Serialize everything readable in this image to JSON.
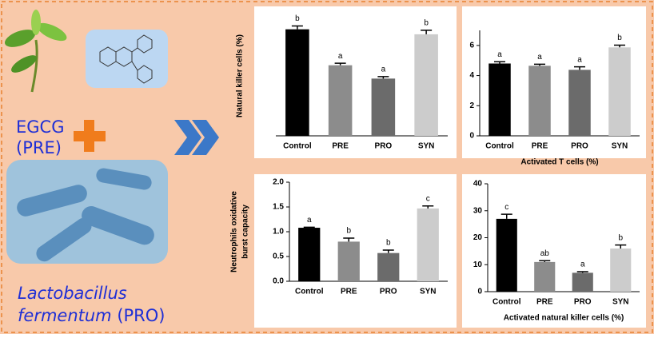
{
  "left_panel": {
    "line1": "EGCG",
    "line2": "(PRE)",
    "genus": "Lactobacillus",
    "species": "fermentum",
    "code": "(PRO)"
  },
  "chart_data": [
    {
      "type": "bar",
      "ylabel": [
        "Natural killer cells (%)"
      ],
      "categories": [
        "Control",
        "PRE",
        "PRO",
        "SYN"
      ],
      "values": [
        3.2,
        2.12,
        1.72,
        3.05
      ],
      "errors": [
        0.1,
        0.06,
        0.06,
        0.12
      ],
      "letters": [
        "b",
        "a",
        "a",
        "b"
      ],
      "colors": [
        "#000000",
        "#8c8c8c",
        "#6b6b6b",
        "#cccccc"
      ],
      "ylim": [
        0,
        3.6
      ]
    },
    {
      "type": "bar",
      "xlabel": "Activated T cells (%)",
      "categories": [
        "Control",
        "PRE",
        "PRO",
        "SYN"
      ],
      "values": [
        4.8,
        4.65,
        4.38,
        5.87
      ],
      "errors": [
        0.12,
        0.1,
        0.2,
        0.15
      ],
      "letters": [
        "a",
        "a",
        "a",
        "b"
      ],
      "colors": [
        "#000000",
        "#8c8c8c",
        "#6b6b6b",
        "#cccccc"
      ],
      "ylim": [
        0,
        7
      ],
      "yticks": [
        0,
        2,
        4,
        6
      ]
    },
    {
      "type": "bar",
      "ylabel": [
        "Neutrophils oxidative",
        "burst capacity"
      ],
      "categories": [
        "Control",
        "PRE",
        "PRO",
        "SYN"
      ],
      "values": [
        1.08,
        0.8,
        0.57,
        1.47
      ],
      "errors": [
        0.01,
        0.07,
        0.06,
        0.05
      ],
      "letters": [
        "a",
        "b",
        "b",
        "c"
      ],
      "colors": [
        "#000000",
        "#8c8c8c",
        "#6b6b6b",
        "#cccccc"
      ],
      "ylim": [
        0,
        2
      ],
      "yticks": [
        {
          "value": 0,
          "label": "0.0"
        },
        {
          "value": 0.5,
          "label": "0.5"
        },
        {
          "value": 1,
          "label": "1.0"
        },
        {
          "value": 1.5,
          "label": "1.5"
        },
        {
          "value": 2,
          "label": "2.0"
        }
      ]
    },
    {
      "type": "bar",
      "xlabel": "Activated natural killer cells (%)",
      "categories": [
        "Control",
        "PRE",
        "PRO",
        "SYN"
      ],
      "values": [
        27,
        11,
        7,
        16
      ],
      "errors": [
        1.7,
        0.5,
        0.4,
        1.3
      ],
      "letters": [
        "c",
        "ab",
        "a",
        "b"
      ],
      "colors": [
        "#000000",
        "#8c8c8c",
        "#6b6b6b",
        "#cccccc"
      ],
      "ylim": [
        0,
        40
      ],
      "yticks": [
        0,
        10,
        20,
        30,
        40
      ]
    }
  ]
}
